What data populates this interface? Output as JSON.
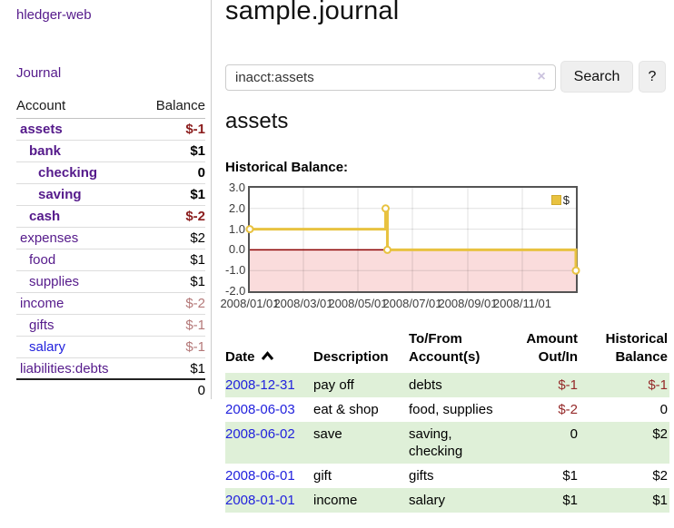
{
  "app": {
    "brand": "hledger-web",
    "nav_journal": "Journal"
  },
  "sidebar": {
    "table": {
      "col_account": "Account",
      "col_balance": "Balance",
      "rows": [
        {
          "account": "assets",
          "balance": "$-1"
        },
        {
          "account": "bank",
          "balance": "$1"
        },
        {
          "account": "checking",
          "balance": "0"
        },
        {
          "account": "saving",
          "balance": "$1"
        },
        {
          "account": "cash",
          "balance": "$-2"
        },
        {
          "account": "expenses",
          "balance": "$2"
        },
        {
          "account": "food",
          "balance": "$1"
        },
        {
          "account": "supplies",
          "balance": "$1"
        },
        {
          "account": "income",
          "balance": "$-2"
        },
        {
          "account": "gifts",
          "balance": "$-1"
        },
        {
          "account": "salary",
          "balance": "$-1"
        },
        {
          "account": "liabilities:debts",
          "balance": "$1"
        }
      ],
      "total": "0"
    }
  },
  "main": {
    "title": "sample.journal",
    "search": {
      "query": "inacct:assets",
      "clear_icon": "×",
      "search_button": "Search",
      "help_button": "?"
    },
    "account_heading": "assets",
    "chart_label": "Historical Balance:"
  },
  "chart_data": {
    "type": "line",
    "title": "Historical Balance:",
    "series": [
      {
        "name": "$",
        "step": true,
        "points": [
          [
            "2008-01-01",
            1
          ],
          [
            "2008-06-01",
            2
          ],
          [
            "2008-06-03",
            0
          ],
          [
            "2008-12-31",
            -1
          ]
        ]
      }
    ],
    "x_range": [
      "2008-01-01",
      "2008-12-31"
    ],
    "ylim": [
      -2,
      3
    ],
    "yticks": [
      3,
      2,
      1,
      0,
      -1,
      -2
    ],
    "ytick_labels": [
      "3.0",
      "2.0",
      "1.0",
      "0.0",
      "-1.0",
      "-2.0"
    ],
    "xticks": [
      "2008-01-01",
      "2008-03-01",
      "2008-05-01",
      "2008-07-01",
      "2008-09-01",
      "2008-11-01"
    ],
    "xtick_labels": [
      "2008/01/01",
      "2008/03/01",
      "2008/05/01",
      "2008/07/01",
      "2008/09/01",
      "2008/11/01"
    ],
    "legend_position": "top-right",
    "grid": true,
    "line_color": "#e8c240",
    "marker_fill": "#ffffff",
    "zero_line_color": "#8b0000",
    "negative_region_color": "#fadcdc"
  },
  "register": {
    "headers": {
      "date": "Date",
      "description": "Description",
      "accounts": "To/From Account(s)",
      "amount": "Amount Out/In",
      "balance": "Historical Balance"
    },
    "rows": [
      {
        "date": "2008-12-31",
        "description": "pay off",
        "accounts": "debts",
        "amount": "$-1",
        "balance": "$-1"
      },
      {
        "date": "2008-06-03",
        "description": "eat & shop",
        "accounts": "food, supplies",
        "amount": "$-2",
        "balance": "0"
      },
      {
        "date": "2008-06-02",
        "description": "save",
        "accounts": "saving, checking",
        "amount": "0",
        "balance": "$2"
      },
      {
        "date": "2008-06-01",
        "description": "gift",
        "accounts": "gifts",
        "amount": "$1",
        "balance": "$2"
      },
      {
        "date": "2008-01-01",
        "description": "income",
        "accounts": "salary",
        "amount": "$1",
        "balance": "$1"
      }
    ]
  }
}
